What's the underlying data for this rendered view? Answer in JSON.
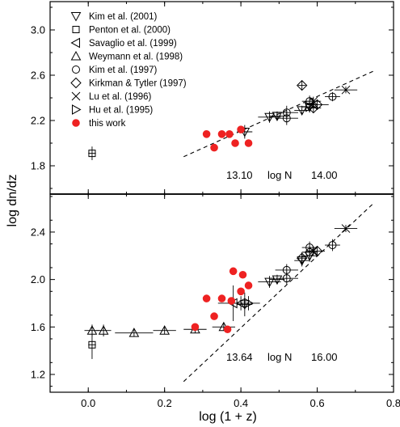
{
  "chart_data": [
    {
      "type": "scatter",
      "panel": "top",
      "ylabel": "log dn/dz",
      "xlabel": "log (1 + z)",
      "xlim": [
        -0.1,
        0.8
      ],
      "ylim": [
        1.55,
        3.25
      ],
      "yticks": [
        "1.8",
        "2.2",
        "2.6",
        "3.0"
      ],
      "xticks": [
        "0.0",
        "0.2",
        "0.4",
        "0.6",
        "0.8"
      ],
      "legend": [
        {
          "name": "Kim et al. (2001)",
          "marker": "triangle-down"
        },
        {
          "name": "Penton et al. (2000)",
          "marker": "square"
        },
        {
          "name": "Savaglio et al. (1999)",
          "marker": "triangle-left"
        },
        {
          "name": "Weymann et al. (1998)",
          "marker": "triangle-up"
        },
        {
          "name": "Kim et al. (1997)",
          "marker": "circle"
        },
        {
          "name": "Kirkman & Tytler (1997)",
          "marker": "diamond"
        },
        {
          "name": "Lu et al. (1996)",
          "marker": "cross"
        },
        {
          "name": "Hu et al. (1995)",
          "marker": "triangle-right"
        },
        {
          "name": "this work",
          "marker": "filled-circle"
        }
      ],
      "annotation": {
        "low": "13.10",
        "mid": "log N",
        "high": "14.00"
      },
      "fit_line": {
        "x": [
          0.25,
          0.75
        ],
        "y": [
          1.88,
          2.64
        ]
      },
      "series": [
        {
          "marker": "square",
          "points": [
            {
              "x": 0.01,
              "y": 1.91,
              "ex": 0.01,
              "ey": 0.06
            }
          ]
        },
        {
          "marker": "triangle-down",
          "points": [
            {
              "x": 0.41,
              "y": 2.1,
              "ex": 0.02,
              "ey": 0.06
            },
            {
              "x": 0.475,
              "y": 2.23,
              "ex": 0.03,
              "ey": 0.05
            },
            {
              "x": 0.495,
              "y": 2.24,
              "ex": 0.02,
              "ey": 0.04
            },
            {
              "x": 0.56,
              "y": 2.29,
              "ex": 0.02,
              "ey": 0.04
            },
            {
              "x": 0.58,
              "y": 2.32,
              "ex": 0.02,
              "ey": 0.04
            }
          ]
        },
        {
          "marker": "circle",
          "points": [
            {
              "x": 0.52,
              "y": 2.27,
              "ex": 0.03,
              "ey": 0.06
            },
            {
              "x": 0.52,
              "y": 2.22,
              "ex": 0.03,
              "ey": 0.06
            },
            {
              "x": 0.58,
              "y": 2.37,
              "ex": 0.02,
              "ey": 0.05
            },
            {
              "x": 0.64,
              "y": 2.41,
              "ex": 0.02,
              "ey": 0.04
            }
          ]
        },
        {
          "marker": "diamond",
          "points": [
            {
              "x": 0.56,
              "y": 2.51,
              "ex": 0.01,
              "ey": 0.04
            },
            {
              "x": 0.59,
              "y": 2.31,
              "ex": 0.02,
              "ey": 0.04
            },
            {
              "x": 0.6,
              "y": 2.34,
              "ex": 0.03,
              "ey": 0.04
            }
          ]
        },
        {
          "marker": "cross",
          "points": [
            {
              "x": 0.675,
              "y": 2.47,
              "ex": 0.03,
              "ey": 0.03
            },
            {
              "x": 0.59,
              "y": 2.37,
              "ex": 0.02,
              "ey": 0.04
            }
          ]
        },
        {
          "marker": "triangle-right",
          "points": [
            {
              "x": 0.58,
              "y": 2.32,
              "ex": 0.02,
              "ey": 0.05
            }
          ]
        },
        {
          "marker": "filled-circle",
          "points": [
            {
              "x": 0.31,
              "y": 2.08
            },
            {
              "x": 0.33,
              "y": 1.96
            },
            {
              "x": 0.35,
              "y": 2.08
            },
            {
              "x": 0.37,
              "y": 2.08
            },
            {
              "x": 0.385,
              "y": 2.0
            },
            {
              "x": 0.4,
              "y": 2.12
            },
            {
              "x": 0.42,
              "y": 2.0
            }
          ]
        }
      ]
    },
    {
      "type": "scatter",
      "panel": "bottom",
      "ylabel": "log dn/dz",
      "xlabel": "log (1 + z)",
      "xlim": [
        -0.1,
        0.8
      ],
      "ylim": [
        1.05,
        2.72
      ],
      "yticks": [
        "1.2",
        "1.6",
        "2.0",
        "2.4"
      ],
      "xticks": [
        "0.0",
        "0.2",
        "0.4",
        "0.6",
        "0.8"
      ],
      "annotation": {
        "low": "13.64",
        "mid": "log N",
        "high": "16.00"
      },
      "fit_line": {
        "x": [
          0.25,
          0.75
        ],
        "y": [
          1.14,
          2.65
        ]
      },
      "series": [
        {
          "marker": "square",
          "points": [
            {
              "x": 0.01,
              "y": 1.45,
              "ex": 0.01,
              "ey": 0.12
            }
          ]
        },
        {
          "marker": "triangle-up",
          "points": [
            {
              "x": 0.01,
              "y": 1.57,
              "ex": 0.02,
              "ey": 0.05
            },
            {
              "x": 0.04,
              "y": 1.57,
              "ex": 0.02,
              "ey": 0.05
            },
            {
              "x": 0.12,
              "y": 1.55,
              "ex": 0.05,
              "ey": 0.03
            },
            {
              "x": 0.2,
              "y": 1.57,
              "ex": 0.03,
              "ey": 0.03
            },
            {
              "x": 0.28,
              "y": 1.58,
              "ex": 0.03,
              "ey": 0.03
            },
            {
              "x": 0.355,
              "y": 1.6,
              "ex": 0.03,
              "ey": 0.03
            }
          ]
        },
        {
          "marker": "triangle-left",
          "points": [
            {
              "x": 0.38,
              "y": 1.8,
              "ex": 0.04,
              "ey": 0.15
            },
            {
              "x": 0.4,
              "y": 1.8,
              "ex": 0.02,
              "ey": 0.06
            }
          ]
        },
        {
          "marker": "triangle-down",
          "points": [
            {
              "x": 0.41,
              "y": 1.79,
              "ex": 0.02,
              "ey": 0.1
            },
            {
              "x": 0.475,
              "y": 1.98,
              "ex": 0.03,
              "ey": 0.05
            },
            {
              "x": 0.495,
              "y": 2.0,
              "ex": 0.02,
              "ey": 0.04
            },
            {
              "x": 0.56,
              "y": 2.16,
              "ex": 0.02,
              "ey": 0.05
            },
            {
              "x": 0.58,
              "y": 2.2,
              "ex": 0.02,
              "ey": 0.05
            }
          ]
        },
        {
          "marker": "circle",
          "points": [
            {
              "x": 0.52,
              "y": 2.08,
              "ex": 0.03,
              "ey": 0.05
            },
            {
              "x": 0.52,
              "y": 2.01,
              "ex": 0.03,
              "ey": 0.05
            },
            {
              "x": 0.58,
              "y": 2.27,
              "ex": 0.02,
              "ey": 0.05
            },
            {
              "x": 0.58,
              "y": 2.23,
              "ex": 0.02,
              "ey": 0.05
            },
            {
              "x": 0.64,
              "y": 2.29,
              "ex": 0.02,
              "ey": 0.05
            }
          ]
        },
        {
          "marker": "diamond",
          "points": [
            {
              "x": 0.56,
              "y": 2.18,
              "ex": 0.01,
              "ey": 0.05
            },
            {
              "x": 0.6,
              "y": 2.24,
              "ex": 0.02,
              "ey": 0.04
            }
          ]
        },
        {
          "marker": "cross",
          "points": [
            {
              "x": 0.675,
              "y": 2.43,
              "ex": 0.03,
              "ey": 0.03
            },
            {
              "x": 0.59,
              "y": 2.24,
              "ex": 0.02,
              "ey": 0.04
            }
          ]
        },
        {
          "marker": "triangle-right",
          "points": [
            {
              "x": 0.42,
              "y": 1.8,
              "ex": 0.03,
              "ey": 0.06
            }
          ]
        },
        {
          "marker": "filled-circle",
          "points": [
            {
              "x": 0.28,
              "y": 1.6
            },
            {
              "x": 0.31,
              "y": 1.84
            },
            {
              "x": 0.33,
              "y": 1.69
            },
            {
              "x": 0.35,
              "y": 1.84
            },
            {
              "x": 0.365,
              "y": 1.58
            },
            {
              "x": 0.375,
              "y": 1.82
            },
            {
              "x": 0.38,
              "y": 2.07
            },
            {
              "x": 0.4,
              "y": 1.9
            },
            {
              "x": 0.405,
              "y": 2.04
            },
            {
              "x": 0.42,
              "y": 1.95
            }
          ]
        }
      ]
    }
  ],
  "colors": {
    "axis": "#000000",
    "this_work": "#ee2222"
  }
}
